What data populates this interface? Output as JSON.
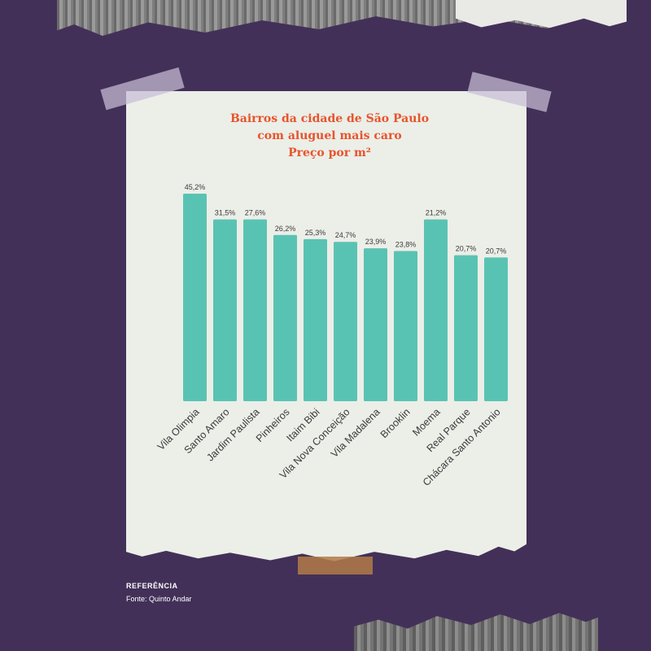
{
  "colors": {
    "background": "#433058",
    "paper": "#eceee8",
    "bar": "#59c3b3",
    "title": "#e8542c",
    "label_text": "#3a3a3a"
  },
  "chart_data": {
    "type": "bar",
    "title": "Bairros da cidade de São Paulo",
    "title_line2": "com aluguel mais caro",
    "subtitle": "Preço por m²",
    "categories": [
      "Vila Olimpia",
      "Santo Amaro",
      "Jardim Paulista",
      "Pinheiros",
      "Itaim Bibi",
      "Vila Nova Conceição",
      "Vila Madalena",
      "Brooklin",
      "Moema",
      "Real Parque",
      "Chácara Santo Antonio"
    ],
    "values": [
      45.2,
      31.5,
      27.6,
      26.2,
      25.3,
      24.7,
      23.9,
      23.8,
      21.2,
      20.7,
      20.7
    ],
    "bar_level": [
      45.2,
      39.6,
      39.6,
      36.2,
      35.3,
      34.7,
      33.3,
      32.7,
      39.6,
      31.8,
      31.3
    ],
    "data_labels": [
      "45,2%",
      "31,5%",
      "27,6%",
      "26,2%",
      "25,3%",
      "24,7%",
      "23,9%",
      "23,8%",
      "21,2%",
      "20,7%",
      "20,7%"
    ],
    "ylim": [
      0,
      45.2
    ],
    "grid": false,
    "legend": "none"
  },
  "footer": {
    "reference_label": "REFERÊNCIA",
    "source": "Fonte: Quinto Andar"
  }
}
